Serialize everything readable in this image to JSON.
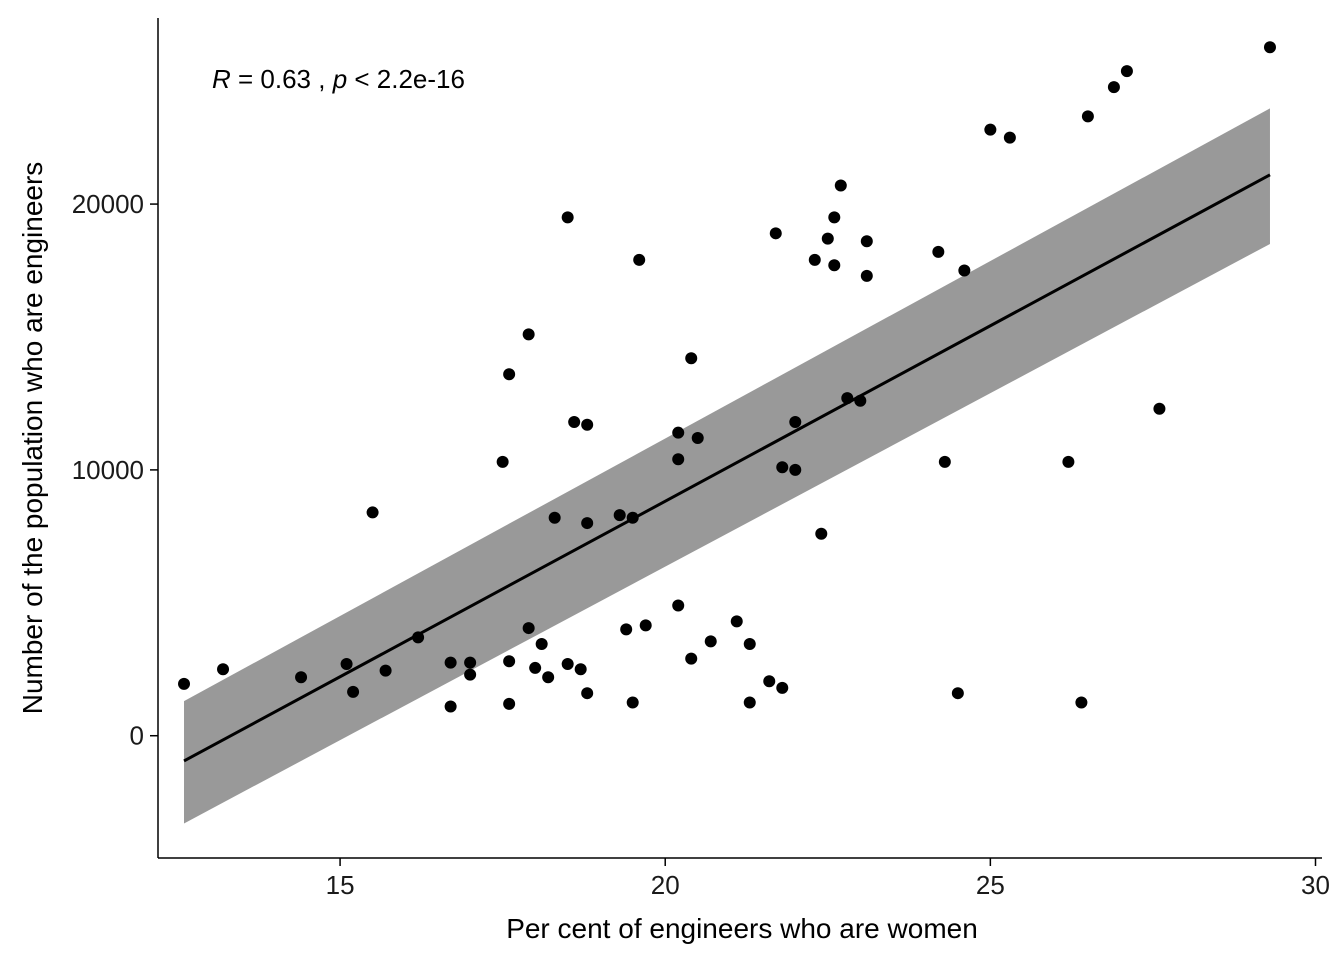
{
  "chart_data": {
    "type": "scatter",
    "title": "",
    "xlabel": "Per cent of engineers who are women",
    "ylabel": "Number of the population who are engineers",
    "xlim": [
      12.2,
      30.1
    ],
    "ylim": [
      -4600,
      27000
    ],
    "xticks": [
      15,
      20,
      25,
      30
    ],
    "yticks": [
      0,
      10000,
      20000
    ],
    "grid": false,
    "legend": "none",
    "annotation": {
      "r_label": "R",
      "r_text": " = 0.63 , ",
      "p_label": "p",
      "p_text": " < 2.2e-16"
    },
    "points": [
      {
        "x": 12.6,
        "y": 1950
      },
      {
        "x": 13.2,
        "y": 2500
      },
      {
        "x": 14.4,
        "y": 2200
      },
      {
        "x": 15.1,
        "y": 2700
      },
      {
        "x": 15.2,
        "y": 1650
      },
      {
        "x": 15.5,
        "y": 8400
      },
      {
        "x": 15.7,
        "y": 2450
      },
      {
        "x": 16.2,
        "y": 3700
      },
      {
        "x": 16.7,
        "y": 2750
      },
      {
        "x": 16.7,
        "y": 1100
      },
      {
        "x": 17.0,
        "y": 2750
      },
      {
        "x": 17.0,
        "y": 2300
      },
      {
        "x": 17.5,
        "y": 10300
      },
      {
        "x": 17.6,
        "y": 13600
      },
      {
        "x": 17.6,
        "y": 2800
      },
      {
        "x": 17.6,
        "y": 1200
      },
      {
        "x": 17.9,
        "y": 15100
      },
      {
        "x": 17.9,
        "y": 4050
      },
      {
        "x": 18.0,
        "y": 2550
      },
      {
        "x": 18.1,
        "y": 3450
      },
      {
        "x": 18.2,
        "y": 2200
      },
      {
        "x": 18.3,
        "y": 8200
      },
      {
        "x": 18.5,
        "y": 19500
      },
      {
        "x": 18.5,
        "y": 2700
      },
      {
        "x": 18.6,
        "y": 11800
      },
      {
        "x": 18.7,
        "y": 2500
      },
      {
        "x": 18.8,
        "y": 11700
      },
      {
        "x": 18.8,
        "y": 8000
      },
      {
        "x": 18.8,
        "y": 1600
      },
      {
        "x": 19.3,
        "y": 8300
      },
      {
        "x": 19.4,
        "y": 4000
      },
      {
        "x": 19.5,
        "y": 8200
      },
      {
        "x": 19.5,
        "y": 1250
      },
      {
        "x": 19.6,
        "y": 17900
      },
      {
        "x": 19.7,
        "y": 4150
      },
      {
        "x": 20.2,
        "y": 11400
      },
      {
        "x": 20.2,
        "y": 10400
      },
      {
        "x": 20.2,
        "y": 4900
      },
      {
        "x": 20.4,
        "y": 14200
      },
      {
        "x": 20.4,
        "y": 2900
      },
      {
        "x": 20.5,
        "y": 11200
      },
      {
        "x": 20.7,
        "y": 3550
      },
      {
        "x": 21.1,
        "y": 4300
      },
      {
        "x": 21.3,
        "y": 3450
      },
      {
        "x": 21.3,
        "y": 1250
      },
      {
        "x": 21.6,
        "y": 2050
      },
      {
        "x": 21.7,
        "y": 18900
      },
      {
        "x": 21.8,
        "y": 10100
      },
      {
        "x": 21.8,
        "y": 1800
      },
      {
        "x": 22.0,
        "y": 11800
      },
      {
        "x": 22.0,
        "y": 10000
      },
      {
        "x": 22.3,
        "y": 17900
      },
      {
        "x": 22.4,
        "y": 7600
      },
      {
        "x": 22.5,
        "y": 18700
      },
      {
        "x": 22.6,
        "y": 19500
      },
      {
        "x": 22.6,
        "y": 17700
      },
      {
        "x": 22.7,
        "y": 20700
      },
      {
        "x": 22.8,
        "y": 12700
      },
      {
        "x": 23.0,
        "y": 12600
      },
      {
        "x": 23.1,
        "y": 18600
      },
      {
        "x": 23.1,
        "y": 17300
      },
      {
        "x": 24.2,
        "y": 18200
      },
      {
        "x": 24.3,
        "y": 10300
      },
      {
        "x": 24.5,
        "y": 1600
      },
      {
        "x": 24.6,
        "y": 17500
      },
      {
        "x": 25.0,
        "y": 22800
      },
      {
        "x": 25.3,
        "y": 22500
      },
      {
        "x": 26.2,
        "y": 10300
      },
      {
        "x": 26.4,
        "y": 1250
      },
      {
        "x": 26.5,
        "y": 23300
      },
      {
        "x": 26.9,
        "y": 24400
      },
      {
        "x": 27.1,
        "y": 25000
      },
      {
        "x": 27.6,
        "y": 12300
      },
      {
        "x": 29.3,
        "y": 25900
      }
    ],
    "fit": {
      "x": [
        12.6,
        29.3
      ],
      "y": [
        -950,
        21100
      ]
    },
    "confidence_band": {
      "x": [
        12.6,
        29.3
      ],
      "upper": [
        1300,
        23600
      ],
      "lower": [
        -3300,
        18500
      ]
    },
    "colors": {
      "points": "#000000",
      "fit_line": "#000000",
      "band": "#999999",
      "axis": "#000000"
    }
  }
}
